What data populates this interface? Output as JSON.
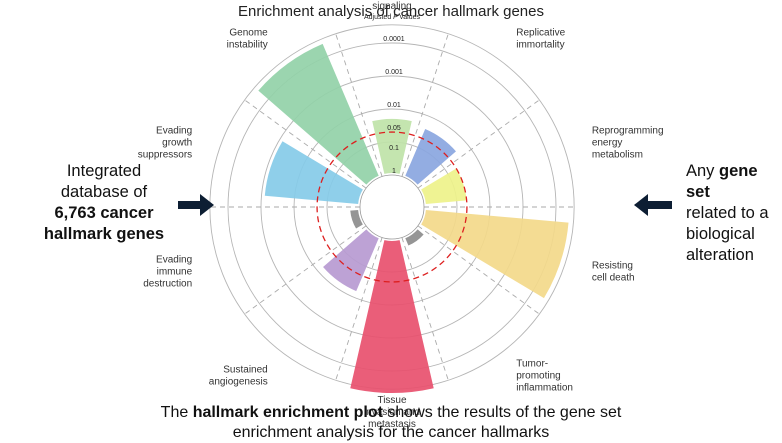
{
  "title": "Enrichment analysis of cancer hallmark genes",
  "left_text": {
    "line1": "Integrated",
    "line2": "database of",
    "line3_bold": "6,763 cancer",
    "line4_bold": "hallmark genes"
  },
  "right_text": {
    "line1_plain": "Any ",
    "line1_bold": "gene set",
    "line2": "related to a",
    "line3": "biological",
    "line4": "alteration"
  },
  "caption": {
    "line1_pre": "The ",
    "line1_bold": "hallmark enrichment plot",
    "line1_post": " shows the results of the gene set",
    "line2": "enrichment analysis for the cancer hallmarks"
  },
  "scale": {
    "title_pre": "Adjusted ",
    "title_italic": "P",
    "title_post": " values",
    "ticks": [
      "0.0001",
      "0.001",
      "0.01",
      "0.05",
      "0.1",
      "1"
    ]
  },
  "colors": {
    "sustaining": "#bfe3a8",
    "replicative": "#8aa6e0",
    "energy": "#eef28a",
    "death": "#f3d98a",
    "inflammation": "#8c8c8c",
    "invasion": "#e8506e",
    "angiogenesis": "#b79ad1",
    "immune": "#8c8c8c",
    "growth": "#86cbe8",
    "genome": "#93d1a8",
    "arrow": "#0d1e33",
    "threshold": "#dd1f1f"
  },
  "chart_data": {
    "type": "radial-bar",
    "categories": [
      "Sustaining proliferative signaling",
      "Replicative immortality",
      "Reprogramming energy metabolism",
      "Resisting cell death",
      "Tumor-promoting inflammation",
      "Tissue invasion and metastasis",
      "Sustained angiogenesis",
      "Evading immune destruction",
      "Evading growth suppressors",
      "Genome instability"
    ],
    "labels": [
      [
        "Sustaining",
        "proliferative",
        "signaling"
      ],
      [
        "Replicative",
        "immortality"
      ],
      [
        "Reprogramming",
        "energy",
        "metabolism"
      ],
      [
        "Resisting",
        "cell death"
      ],
      [
        "Tumor-",
        "promoting",
        "inflammation"
      ],
      [
        "Tissue",
        "invasion and",
        "metastasis"
      ],
      [
        "Sustained",
        "angiogenesis"
      ],
      [
        "Evading",
        "immune",
        "destruction"
      ],
      [
        "Evading",
        "growth",
        "suppressors"
      ],
      [
        "Genome",
        "instability"
      ]
    ],
    "neg_log10_adjusted_p": [
      1.7,
      1.6,
      1.3,
      4.4,
      0.3,
      5.2,
      1.8,
      0.3,
      2.9,
      4.4
    ],
    "axis": "adjusted P value (log scale)",
    "ticks": [
      0.0001,
      0.001,
      0.01,
      0.05,
      0.1,
      1
    ],
    "threshold": 0.05
  }
}
